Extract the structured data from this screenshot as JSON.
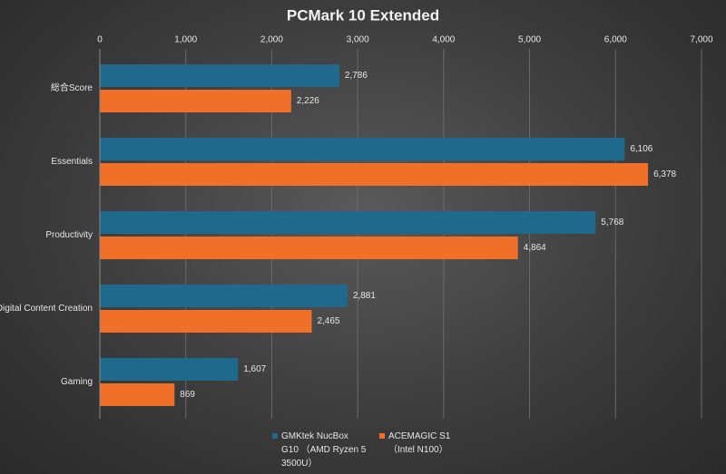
{
  "chart_data": {
    "type": "hbar",
    "title": "PCMark 10 Extended",
    "categories": [
      "総合Score",
      "Essentials",
      "Productivity",
      "Digital Content Creation",
      "Gaming"
    ],
    "series": [
      {
        "name": "GMKtek NucBox G10 （AMD Ryzen 5 3500U）",
        "color": "#1f6a8c",
        "values": [
          2786,
          6106,
          5768,
          2881,
          1607
        ],
        "value_labels": [
          "2,786",
          "6,106",
          "5,768",
          "2,881",
          "1,607"
        ]
      },
      {
        "name": "ACEMAGIC S1 （Intel N100）",
        "color": "#f0702a",
        "values": [
          2226,
          6378,
          4864,
          2465,
          869
        ],
        "value_labels": [
          "2,226",
          "6,378",
          "4,864",
          "2,465",
          "869"
        ]
      }
    ],
    "xlim": [
      0,
      7000
    ],
    "xticks": [
      0,
      {
        "value": 1000,
        "label": "1,000"
      },
      {
        "value": 2000,
        "label": "2,000"
      },
      {
        "value": 3000,
        "label": "3,000"
      },
      {
        "value": 4000,
        "label": "4,000"
      },
      {
        "value": 5000,
        "label": "5,000"
      },
      {
        "value": 6000,
        "label": "6,000"
      },
      {
        "value": 7000,
        "label": "7,000"
      }
    ],
    "grid": true
  }
}
